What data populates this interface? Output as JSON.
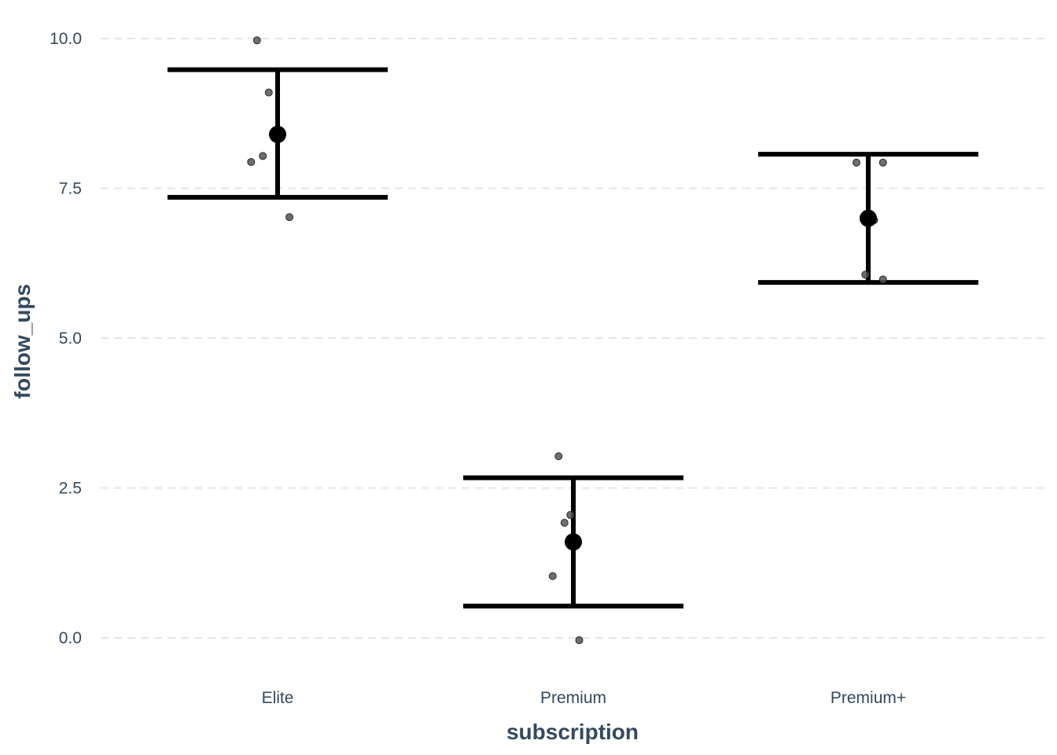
{
  "chart_data": {
    "type": "scatter",
    "title": "",
    "xlabel": "subscription",
    "ylabel": "follow_ups",
    "categories": [
      "Elite",
      "Premium",
      "Premium+"
    ],
    "ylim": [
      -0.7,
      10.4
    ],
    "yticks": [
      0.0,
      2.5,
      5.0,
      7.5,
      10.0
    ],
    "ytick_labels": [
      "0.0",
      "2.5",
      "5.0",
      "7.5",
      "10.0"
    ],
    "grid": true,
    "legend": "none",
    "summary": [
      {
        "category": "Elite",
        "mean": 8.4,
        "lower": 7.35,
        "upper": 9.48
      },
      {
        "category": "Premium",
        "mean": 1.6,
        "lower": 0.53,
        "upper": 2.67
      },
      {
        "category": "Premium+",
        "mean": 7.0,
        "lower": 5.93,
        "upper": 8.07
      }
    ],
    "observations": [
      {
        "category": "Elite",
        "points": [
          {
            "jitter": -0.07,
            "y": 9.97
          },
          {
            "jitter": -0.03,
            "y": 9.1
          },
          {
            "jitter": -0.05,
            "y": 8.04
          },
          {
            "jitter": -0.09,
            "y": 7.94
          },
          {
            "jitter": 0.04,
            "y": 7.02
          }
        ]
      },
      {
        "category": "Premium",
        "points": [
          {
            "jitter": -0.05,
            "y": 3.03
          },
          {
            "jitter": -0.01,
            "y": 2.05
          },
          {
            "jitter": -0.03,
            "y": 1.92
          },
          {
            "jitter": -0.07,
            "y": 1.03
          },
          {
            "jitter": 0.02,
            "y": -0.04
          }
        ]
      },
      {
        "category": "Premium+",
        "points": [
          {
            "jitter": -0.04,
            "y": 7.93
          },
          {
            "jitter": 0.05,
            "y": 7.93
          },
          {
            "jitter": 0.02,
            "y": 6.97
          },
          {
            "jitter": -0.01,
            "y": 6.06
          },
          {
            "jitter": 0.05,
            "y": 5.98
          }
        ]
      }
    ],
    "colors": {
      "summary": "#000000",
      "observations": "#555555",
      "grid": "#e5e5e5",
      "text": "#34495e"
    }
  }
}
